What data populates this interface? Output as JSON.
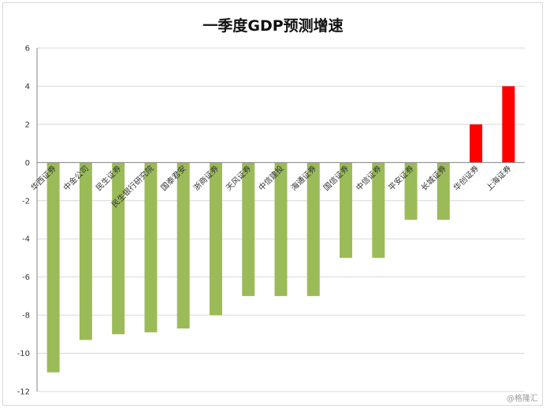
{
  "chart_data": {
    "type": "bar",
    "title": "一季度GDP预测增速",
    "xlabel": "",
    "ylabel": "",
    "ylim": [
      -12,
      6
    ],
    "yticks": [
      6,
      4,
      2,
      0,
      -2,
      -4,
      -6,
      -8,
      -10,
      -12
    ],
    "grid": true,
    "categories": [
      "华西证券",
      "中金公司",
      "民生证券",
      "民生银行研究院",
      "国泰君安",
      "浙商证券",
      "天风证券",
      "中信建投",
      "海通证券",
      "国信证券",
      "中信证券",
      "平安证券",
      "长城证券",
      "华创证券",
      "上海证券"
    ],
    "values": [
      -11,
      -9.3,
      -9,
      -8.9,
      -8.7,
      -8,
      -7,
      -7,
      -7,
      -5,
      -5,
      -3,
      -3,
      2,
      4
    ],
    "colors": {
      "negative": "#9bbb59",
      "positive": "#ff0000",
      "grid": "#d9d9d9",
      "axis": "#868686"
    }
  },
  "watermark": "@格隆汇"
}
